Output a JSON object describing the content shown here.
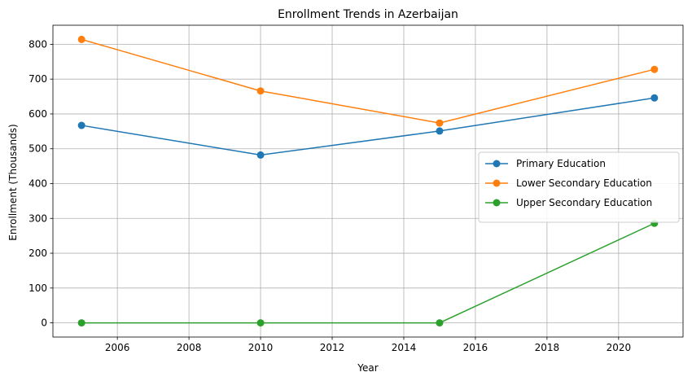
{
  "chart_data": {
    "type": "line",
    "title": "Enrollment Trends in Azerbaijan",
    "xlabel": "Year",
    "ylabel": "Enrollment (Thousands)",
    "x": [
      2005,
      2010,
      2015,
      2021
    ],
    "series": [
      {
        "name": "Primary Education",
        "color": "#1f77b4",
        "values": [
          567,
          482,
          551,
          646
        ]
      },
      {
        "name": "Lower Secondary Education",
        "color": "#ff7f0e",
        "values": [
          814,
          666,
          574,
          728
        ]
      },
      {
        "name": "Upper Secondary Education",
        "color": "#2ca02c",
        "values": [
          0,
          0,
          0,
          286
        ]
      }
    ],
    "xlim": [
      2004.2,
      2021.8
    ],
    "ylim": [
      -40.7,
      854.7
    ],
    "xticks": [
      2006,
      2008,
      2010,
      2012,
      2014,
      2016,
      2018,
      2020
    ],
    "yticks": [
      0,
      100,
      200,
      300,
      400,
      500,
      600,
      700,
      800
    ],
    "grid": true,
    "legend_position": "center-right",
    "marker": "circle"
  }
}
